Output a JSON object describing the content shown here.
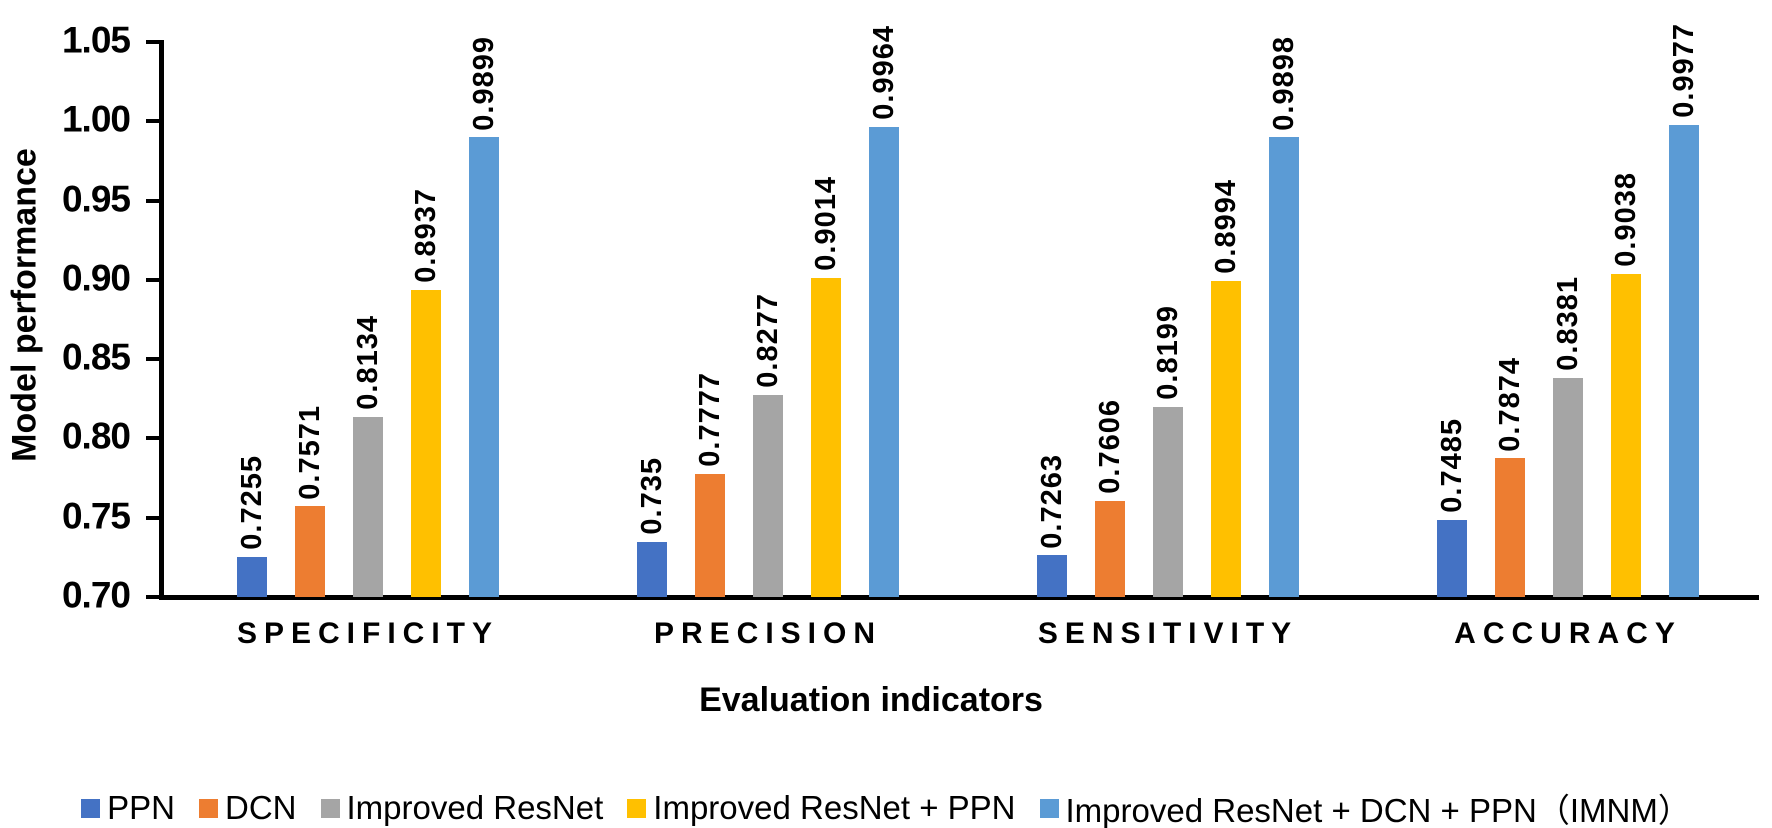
{
  "chart_data": {
    "type": "bar",
    "title": "",
    "xlabel": "Evaluation indicators",
    "ylabel": "Model performance",
    "categories": [
      "SPECIFICITY",
      "PRECISION",
      "SENSITIVITY",
      "ACCURACY"
    ],
    "series": [
      {
        "name": "PPN",
        "color": "#4472C4",
        "values": [
          0.7255,
          0.735,
          0.7263,
          0.7485
        ],
        "labels": [
          "0.7255",
          "0.735",
          "0.7263",
          "0.7485"
        ]
      },
      {
        "name": "DCN",
        "color": "#ED7D31",
        "values": [
          0.7571,
          0.7777,
          0.7606,
          0.7874
        ],
        "labels": [
          "0.7571",
          "0.7777",
          "0.7606",
          "0.7874"
        ]
      },
      {
        "name": "Improved ResNet",
        "color": "#A5A5A5",
        "values": [
          0.8134,
          0.8277,
          0.8199,
          0.8381
        ],
        "labels": [
          "0.8134",
          "0.8277",
          "0.8199",
          "0.8381"
        ]
      },
      {
        "name": "Improved ResNet + PPN",
        "color": "#FFC000",
        "values": [
          0.8937,
          0.9014,
          0.8994,
          0.9038
        ],
        "labels": [
          "0.8937",
          "0.9014",
          "0.8994",
          "0.9038"
        ]
      },
      {
        "name": "Improved ResNet + DCN + PPN（IMNM）",
        "color": "#5B9BD5",
        "values": [
          0.9899,
          0.9964,
          0.9898,
          0.9977
        ],
        "labels": [
          "0.9899",
          "0.9964",
          "0.9898",
          "0.9977"
        ]
      }
    ],
    "ylim": [
      0.7,
      1.05
    ],
    "ytick_step": 0.05,
    "yticks": [
      "0.70",
      "0.75",
      "0.80",
      "0.85",
      "0.90",
      "0.95",
      "1.00",
      "1.05"
    ],
    "grid": false,
    "legend_position": "bottom"
  }
}
